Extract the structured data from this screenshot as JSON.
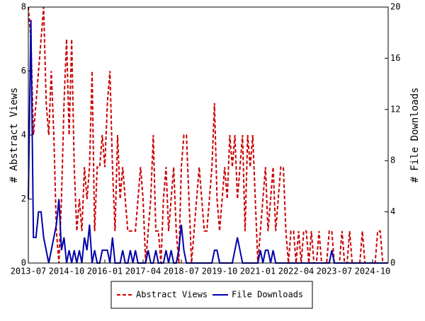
{
  "chart_data": {
    "type": "line",
    "categories": [
      "2013-07",
      null,
      null,
      null,
      null,
      null,
      null,
      null,
      null,
      null,
      null,
      null,
      null,
      null,
      null,
      "2014-10",
      null,
      null,
      null,
      null,
      null,
      null,
      null,
      null,
      null,
      null,
      null,
      null,
      null,
      null,
      "2016-01",
      null,
      null,
      null,
      null,
      null,
      null,
      null,
      null,
      null,
      null,
      null,
      null,
      null,
      null,
      "2017-04",
      null,
      null,
      null,
      null,
      null,
      null,
      null,
      null,
      null,
      null,
      null,
      null,
      null,
      null,
      "2018-07",
      null,
      null,
      null,
      null,
      null,
      null,
      null,
      null,
      null,
      null,
      null,
      null,
      null,
      null,
      "2019-10",
      null,
      null,
      null,
      null,
      null,
      null,
      null,
      null,
      null,
      null,
      null,
      null,
      null,
      null,
      "2021-01",
      null,
      null,
      null,
      null,
      null,
      null,
      null,
      null,
      null,
      null,
      null,
      null,
      null,
      null,
      "2022-04",
      null,
      null,
      null,
      null,
      null,
      null,
      null,
      null,
      null,
      null,
      null,
      null,
      null,
      null,
      "2023-07",
      null,
      null,
      null,
      null,
      null,
      null,
      null,
      null,
      null,
      null,
      null,
      null,
      null,
      null,
      "2024-10",
      null,
      null,
      null,
      null,
      null,
      null
    ],
    "y_label": "# Abstract Views",
    "y2_label": "# File Downloads",
    "ylim": [
      0,
      8
    ],
    "yticks": [
      0,
      2,
      4,
      6,
      8
    ],
    "y2lim": [
      0,
      20
    ],
    "y2ticks": [
      0,
      4,
      8,
      12,
      16,
      20
    ],
    "legend": "bottom",
    "series": [
      {
        "name": "Abstract Views",
        "color": "#cc0000",
        "dashed": true,
        "values": [
          8,
          7,
          4,
          5,
          6,
          7,
          8,
          5,
          4,
          6,
          4,
          1,
          0,
          2,
          5,
          7,
          4,
          7,
          3,
          1,
          2,
          1,
          3,
          2,
          3,
          6,
          1,
          3,
          3,
          4,
          3,
          5,
          6,
          3,
          1,
          4,
          2,
          3,
          2,
          1,
          1,
          1,
          1,
          2,
          3,
          2,
          0,
          1,
          2,
          4,
          1,
          1,
          0,
          2,
          3,
          1,
          2,
          3,
          1,
          0,
          3,
          4,
          4,
          2,
          0,
          1,
          2,
          3,
          2,
          1,
          1,
          2,
          3,
          5,
          2,
          1,
          2,
          3,
          2,
          4,
          3,
          4,
          2,
          3,
          4,
          1,
          4,
          3,
          4,
          2,
          0,
          1,
          2,
          3,
          1,
          2,
          3,
          1,
          2,
          3,
          3,
          1,
          0,
          1,
          1,
          0,
          1,
          0,
          1,
          1,
          0,
          1,
          0,
          0,
          1,
          0,
          0,
          0,
          1,
          1,
          0,
          0,
          0,
          1,
          0,
          0,
          1,
          0,
          0,
          0,
          0,
          1,
          0,
          0,
          0,
          0,
          0,
          1,
          1,
          0,
          0,
          0
        ]
      },
      {
        "name": "File Downloads",
        "color": "#0000aa",
        "dashed": false,
        "axis": "y2",
        "values": [
          5,
          19,
          2,
          2,
          4,
          4,
          2,
          1,
          0,
          1,
          2,
          3,
          5,
          1,
          2,
          0,
          1,
          0,
          1,
          0,
          1,
          0,
          2,
          1,
          3,
          0,
          1,
          0,
          0,
          1,
          1,
          1,
          0,
          2,
          0,
          0,
          0,
          1,
          0,
          0,
          1,
          0,
          1,
          0,
          0,
          0,
          0,
          1,
          0,
          0,
          1,
          0,
          0,
          0,
          1,
          0,
          1,
          0,
          0,
          1,
          3,
          1,
          0,
          0,
          0,
          0,
          0,
          0,
          0,
          0,
          0,
          0,
          0,
          1,
          1,
          0,
          0,
          0,
          0,
          0,
          0,
          1,
          2,
          1,
          0,
          0,
          0,
          0,
          0,
          0,
          0,
          1,
          0,
          1,
          1,
          0,
          1,
          0,
          0,
          0,
          0,
          0,
          0,
          0,
          0,
          0,
          0,
          0,
          0,
          0,
          0,
          0,
          0,
          0,
          0,
          0,
          0,
          0,
          0,
          1,
          0,
          0,
          0,
          0,
          0,
          0,
          0,
          0,
          0,
          0,
          0,
          0,
          0,
          0,
          0,
          0,
          0,
          0,
          0,
          0,
          0,
          0
        ]
      }
    ]
  }
}
